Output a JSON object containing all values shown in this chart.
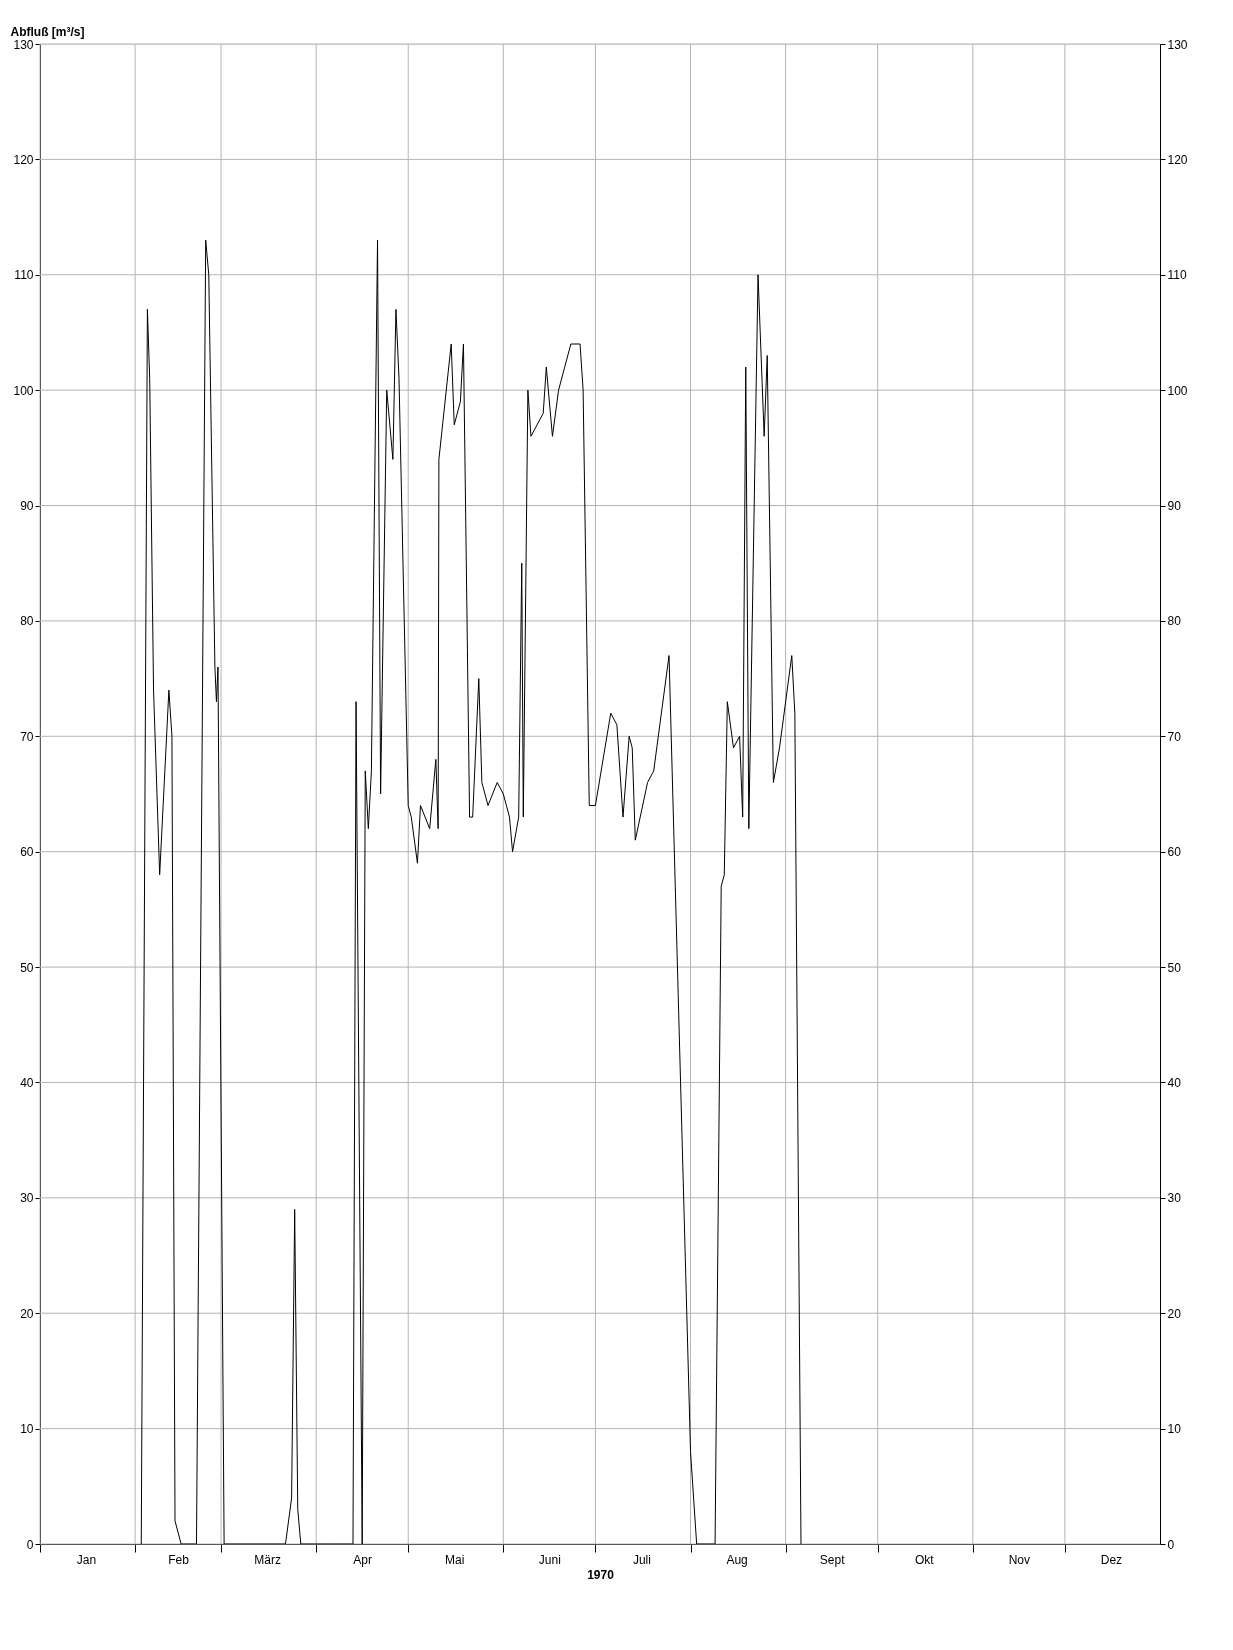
{
  "chart_data": {
    "type": "line",
    "xlabel": "1970",
    "ylabel": "Abfluß [m³/s]",
    "x": [
      "1970-02-03",
      "1970-02-05",
      "1970-02-05T18:00",
      "1970-02-07",
      "1970-02-09",
      "1970-02-12",
      "1970-02-13",
      "1970-02-14",
      "1970-02-16",
      "1970-02-21",
      "1970-02-24",
      "1970-02-25",
      "1970-02-27",
      "1970-02-27T12:00",
      "1970-02-28",
      "1970-03-02",
      "1970-03-22",
      "1970-03-24",
      "1970-03-25",
      "1970-03-26",
      "1970-03-27",
      "1970-04-06",
      "1970-04-13",
      "1970-04-14",
      "1970-04-16",
      "1970-04-17",
      "1970-04-18",
      "1970-04-19",
      "1970-04-21",
      "1970-04-22",
      "1970-04-24",
      "1970-04-26",
      "1970-04-27",
      "1970-04-28",
      "1970-05-01",
      "1970-05-02",
      "1970-05-04",
      "1970-05-05",
      "1970-05-08",
      "1970-05-10",
      "1970-05-10T18:00",
      "1970-05-11",
      "1970-05-15",
      "1970-05-16",
      "1970-05-18",
      "1970-05-19",
      "1970-05-21",
      "1970-05-22",
      "1970-05-24",
      "1970-05-25",
      "1970-05-27",
      "1970-05-30",
      "1970-06-01",
      "1970-06-03",
      "1970-06-04",
      "1970-06-06",
      "1970-06-07",
      "1970-06-07T12:00",
      "1970-06-09",
      "1970-06-10",
      "1970-06-14",
      "1970-06-15",
      "1970-06-17",
      "1970-06-19",
      "1970-06-21",
      "1970-06-23",
      "1970-06-26",
      "1970-06-27",
      "1970-06-29",
      "1970-07-01",
      "1970-07-06",
      "1970-07-08",
      "1970-07-10",
      "1970-07-12",
      "1970-07-13",
      "1970-07-14",
      "1970-07-18",
      "1970-07-20",
      "1970-07-22",
      "1970-07-25",
      "1970-08-01",
      "1970-08-03",
      "1970-08-09",
      "1970-08-11",
      "1970-08-12",
      "1970-08-13",
      "1970-08-15",
      "1970-08-17",
      "1970-08-18",
      "1970-08-19",
      "1970-08-20",
      "1970-08-23",
      "1970-08-25",
      "1970-08-26",
      "1970-08-28",
      "1970-08-30",
      "1970-09-03",
      "1970-09-04",
      "1970-09-06"
    ],
    "series": [
      {
        "color": "#000000",
        "values": [
          0,
          107,
          101,
          74,
          58,
          74,
          70,
          2,
          0,
          0,
          113,
          110,
          76,
          73,
          76,
          0,
          0,
          4,
          29,
          3,
          0,
          0,
          0,
          73,
          0,
          67,
          62,
          67,
          113,
          65,
          100,
          94,
          107,
          101,
          64,
          63,
          59,
          64,
          62,
          68,
          62,
          94,
          104,
          97,
          99,
          104,
          63,
          63,
          75,
          66,
          64,
          66,
          65,
          63,
          60,
          63,
          85,
          63,
          100,
          96,
          98,
          102,
          96,
          100,
          102,
          104,
          104,
          100,
          64,
          64,
          72,
          71,
          63,
          70,
          69,
          61,
          66,
          67,
          71,
          77,
          8,
          0,
          0,
          57,
          58,
          73,
          69,
          70,
          63,
          102,
          62,
          110,
          96,
          103,
          66,
          69,
          77,
          72,
          0
        ]
      }
    ],
    "xlim": [
      "1970-01-01",
      "1971-01-01"
    ],
    "xticks": [
      {
        "value": "1970-01-01",
        "label": null
      },
      {
        "value": "1970-01-16",
        "label": "Jan"
      },
      {
        "value": "1970-02-01",
        "label": null
      },
      {
        "value": "1970-02-15",
        "label": "Feb"
      },
      {
        "value": "1970-03-01",
        "label": null
      },
      {
        "value": "1970-03-16",
        "label": "März"
      },
      {
        "value": "1970-04-01",
        "label": null
      },
      {
        "value": "1970-04-16",
        "label": "Apr"
      },
      {
        "value": "1970-05-01",
        "label": null
      },
      {
        "value": "1970-05-16",
        "label": "Mai"
      },
      {
        "value": "1970-06-01",
        "label": null
      },
      {
        "value": "1970-06-16",
        "label": "Juni"
      },
      {
        "value": "1970-07-01",
        "label": null
      },
      {
        "value": "1970-07-16",
        "label": "Juli"
      },
      {
        "value": "1970-08-01",
        "label": null
      },
      {
        "value": "1970-08-16",
        "label": "Aug"
      },
      {
        "value": "1970-09-01",
        "label": null
      },
      {
        "value": "1970-09-16",
        "label": "Sept"
      },
      {
        "value": "1970-10-01",
        "label": null
      },
      {
        "value": "1970-10-16",
        "label": "Okt"
      },
      {
        "value": "1970-11-01",
        "label": null
      },
      {
        "value": "1970-11-16",
        "label": "Nov"
      },
      {
        "value": "1970-12-01",
        "label": null
      },
      {
        "value": "1970-12-16",
        "label": "Dez"
      }
    ],
    "ylim": [
      0,
      130
    ],
    "yticks": [
      0,
      10,
      20,
      30,
      40,
      50,
      60,
      70,
      80,
      90,
      100,
      110,
      120,
      130
    ],
    "y2lim": [
      0,
      130
    ],
    "y2ticks": [
      0,
      10,
      20,
      30,
      40,
      50,
      60,
      70,
      80,
      90,
      100,
      110,
      120,
      130
    ],
    "grid": true,
    "legend": false
  }
}
